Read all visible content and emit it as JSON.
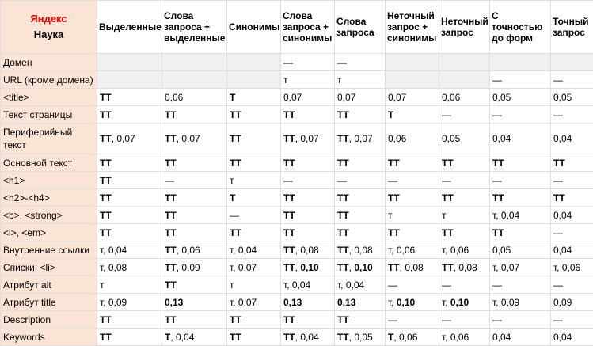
{
  "title": {
    "brand": "Яндекс",
    "subtitle": "Наука"
  },
  "columns": [
    "Выделенные",
    "Слова запроса + выделенные",
    "Синонимы",
    "Слова запроса + синонимы",
    "Слова запроса",
    "Неточный запрос + синонимы",
    "Неточный запрос",
    "С точностью до форм",
    "Точный запрос"
  ],
  "rows": [
    {
      "label": "Домен",
      "cells": [
        "",
        "",
        "",
        "—",
        "—",
        "",
        "",
        "",
        ""
      ]
    },
    {
      "label": "URL (кроме домена)",
      "cells": [
        "",
        "",
        "",
        "т",
        "т",
        "",
        "",
        "—",
        "—"
      ]
    },
    {
      "label": "<title>",
      "cells": [
        "ТТ",
        "0,06",
        "Т",
        "0,07",
        "0,07",
        "0,07",
        "0,06",
        "0,05",
        "0,05"
      ]
    },
    {
      "label": "Текст страницы",
      "cells": [
        "ТТ",
        "ТТ",
        "ТТ",
        "ТТ",
        "ТТ",
        "Т",
        "—",
        "—",
        "—"
      ]
    },
    {
      "label": "Периферийный текст",
      "cells": [
        "ТТ, 0,07",
        "ТТ, 0,07",
        "ТТ",
        "ТТ, 0,07",
        "ТТ, 0,07",
        "0,06",
        "0,05",
        "0,04",
        "0,04"
      ]
    },
    {
      "label": "Основной текст",
      "cells": [
        "ТТ",
        "ТТ",
        "ТТ",
        "ТТ",
        "ТТ",
        "ТТ",
        "ТТ",
        "ТТ",
        "ТТ"
      ]
    },
    {
      "label": "<h1>",
      "cells": [
        "ТТ",
        "—",
        "т",
        "—",
        "—",
        "—",
        "—",
        "—",
        "—"
      ]
    },
    {
      "label": "<h2>-<h4>",
      "cells": [
        "ТТ",
        "ТТ",
        "Т",
        "ТТ",
        "ТТ",
        "ТТ",
        "ТТ",
        "ТТ",
        "ТТ"
      ]
    },
    {
      "label": "<b>, <strong>",
      "cells": [
        "ТТ",
        "ТТ",
        "—",
        "ТТ",
        "ТТ",
        "т",
        "т",
        "т, 0,04",
        "0,04"
      ]
    },
    {
      "label": "<i>, <em>",
      "cells": [
        "ТТ",
        "ТТ",
        "ТТ",
        "ТТ",
        "ТТ",
        "ТТ",
        "ТТ",
        "ТТ",
        "—"
      ]
    },
    {
      "label": "Внутренние ссылки",
      "cells": [
        "т, 0,04",
        "ТТ, 0,06",
        "т, 0,04",
        "ТТ, 0,08",
        "ТТ, 0,08",
        "т, 0,06",
        "т, 0,06",
        "0,05",
        "0,04"
      ]
    },
    {
      "label": "Списки: <li>",
      "cells": [
        "т, 0,08",
        "ТТ, 0,09",
        "т, 0,07",
        "ТТ, 0,10",
        "ТТ, 0,10",
        "ТТ, 0,08",
        "ТТ, 0,08",
        "т, 0,07",
        "т, 0,06"
      ]
    },
    {
      "label": "Атрибут alt",
      "cells": [
        "т",
        "ТТ",
        "т",
        "т, 0,04",
        "т, 0,04",
        "—",
        "—",
        "—",
        "—"
      ]
    },
    {
      "label": "Атрибут title",
      "cells": [
        "т, 0,09",
        "0,13",
        "т, 0,07",
        "0,13",
        "0,13",
        "т, 0,10",
        "т, 0,10",
        "т, 0,09",
        "0,09"
      ]
    },
    {
      "label": "Description",
      "cells": [
        "ТТ",
        "ТТ",
        "ТТ",
        "ТТ",
        "ТТ",
        "—",
        "—",
        "—",
        "—"
      ]
    },
    {
      "label": "Keywords",
      "cells": [
        "ТТ",
        "Т, 0,04",
        "ТТ",
        "ТТ, 0,04",
        "ТТ, 0,05",
        "Т, 0,06",
        "т, 0,06",
        "0,04",
        "0,04"
      ]
    }
  ]
}
